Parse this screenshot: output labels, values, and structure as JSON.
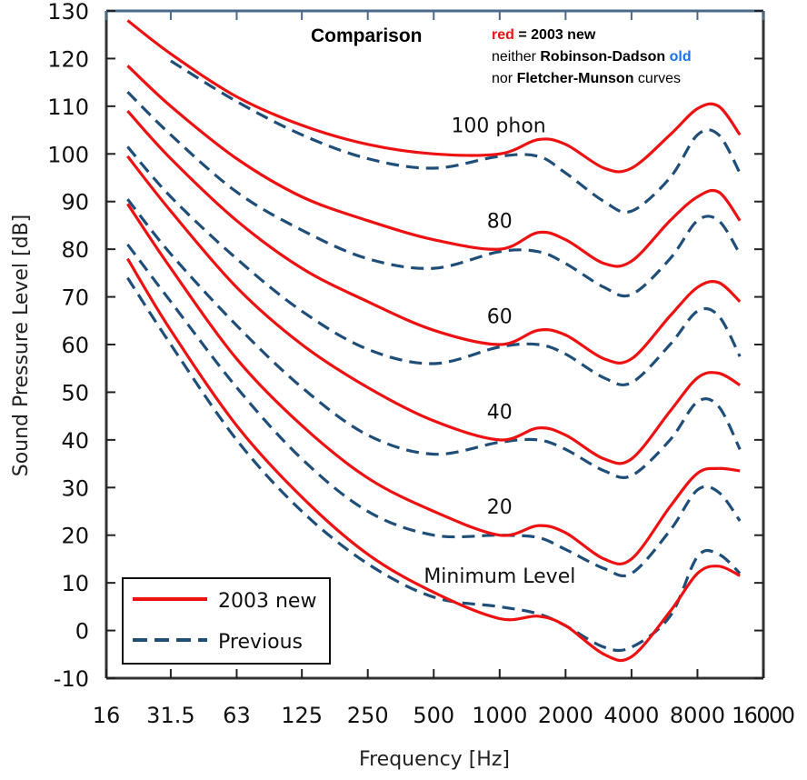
{
  "chart_data": {
    "type": "line",
    "title": "Comparison",
    "notes": {
      "line1": {
        "red_word": "red",
        "rest": " = 2003 new"
      },
      "line2": {
        "pre": "neither ",
        "bold": "Robinson-Dadson",
        "space": " ",
        "old": "old"
      },
      "line3": {
        "pre": "nor ",
        "bold": "Fletcher-Munson",
        "post": " curves"
      }
    },
    "xlabel": "Frequency [Hz]",
    "ylabel": "Sound Pressure Level [dB]",
    "xscale": "log2",
    "xlim": [
      16,
      16000
    ],
    "ylim": [
      -10,
      130
    ],
    "xticks": [
      16,
      31.5,
      63,
      125,
      250,
      500,
      1000,
      2000,
      4000,
      8000,
      16000
    ],
    "xtick_labels": [
      "16",
      "31.5",
      "63",
      "125",
      "250",
      "500",
      "1000",
      "2000",
      "4000",
      "8000",
      "16000"
    ],
    "yticks": [
      -10,
      0,
      10,
      20,
      30,
      40,
      50,
      60,
      70,
      80,
      90,
      100,
      110,
      120,
      130
    ],
    "ytick_labels": [
      "-10",
      "0",
      "10",
      "20",
      "30",
      "40",
      "50",
      "60",
      "70",
      "80",
      "90",
      "100",
      "110",
      "120",
      "130"
    ],
    "grid": false,
    "legend": {
      "position": "bottom-left",
      "entries": [
        {
          "label": "2003 new",
          "style": "solid",
          "color": "#ee1111"
        },
        {
          "label": "Previous",
          "style": "dashed",
          "color": "#1f4e79"
        }
      ]
    },
    "curve_labels": [
      {
        "text": "100 phon",
        "freq": 800,
        "db": 104.5
      },
      {
        "text": "80",
        "freq": 1000,
        "db": 84.5
      },
      {
        "text": "60",
        "freq": 1000,
        "db": 64.5
      },
      {
        "text": "40",
        "freq": 1000,
        "db": 44.5
      },
      {
        "text": "20",
        "freq": 1000,
        "db": 24.5
      },
      {
        "text": "Minimum Level",
        "freq": 600,
        "db": 10
      }
    ],
    "series": [
      {
        "name": "2003 new 100 phon",
        "group": "2003 new",
        "color": "#ee1111",
        "dashed": false,
        "x": [
          20,
          31.5,
          63,
          125,
          250,
          500,
          1000,
          1500,
          2000,
          3000,
          4000,
          6000,
          8000,
          10000,
          12500
        ],
        "y": [
          128,
          121,
          112,
          106,
          102,
          100,
          100,
          103,
          102,
          97,
          97,
          104,
          109.5,
          110,
          104
        ]
      },
      {
        "name": "2003 new 80 phon",
        "group": "2003 new",
        "color": "#ee1111",
        "dashed": false,
        "x": [
          20,
          31.5,
          63,
          125,
          250,
          500,
          1000,
          1500,
          2000,
          3000,
          4000,
          6000,
          8000,
          10000,
          12500
        ],
        "y": [
          118.5,
          110,
          99,
          91,
          86,
          82,
          80,
          83.5,
          82,
          77,
          77.5,
          86,
          91,
          92,
          86
        ]
      },
      {
        "name": "2003 new 60 phon",
        "group": "2003 new",
        "color": "#ee1111",
        "dashed": false,
        "x": [
          20,
          31.5,
          63,
          125,
          250,
          500,
          1000,
          1500,
          2000,
          3000,
          4000,
          6000,
          8000,
          10000,
          12500
        ],
        "y": [
          109,
          99,
          86,
          76,
          69,
          63,
          60,
          63,
          62,
          57,
          57,
          66,
          72,
          73,
          69
        ]
      },
      {
        "name": "2003 new 40 phon",
        "group": "2003 new",
        "color": "#ee1111",
        "dashed": false,
        "x": [
          20,
          31.5,
          63,
          125,
          250,
          500,
          1000,
          1500,
          2000,
          3000,
          4000,
          6000,
          8000,
          10000,
          12500
        ],
        "y": [
          99.5,
          88,
          72,
          60,
          51,
          44,
          40,
          42.5,
          41,
          36,
          36,
          46,
          53,
          54,
          51.5
        ]
      },
      {
        "name": "2003 new 20 phon",
        "group": "2003 new",
        "color": "#ee1111",
        "dashed": false,
        "x": [
          20,
          31.5,
          63,
          125,
          250,
          500,
          1000,
          1500,
          2000,
          3000,
          4000,
          6000,
          8000,
          10000,
          12500
        ],
        "y": [
          89.5,
          76,
          57,
          43,
          32,
          25,
          20,
          22,
          20.5,
          15,
          15,
          26,
          33,
          34,
          33.5
        ]
      },
      {
        "name": "2003 new Minimum Level",
        "group": "2003 new",
        "color": "#ee1111",
        "dashed": false,
        "x": [
          20,
          31.5,
          63,
          125,
          250,
          500,
          1000,
          1500,
          2000,
          3000,
          4000,
          6000,
          8000,
          10000,
          12500
        ],
        "y": [
          78,
          63,
          43,
          28,
          16,
          8,
          2.5,
          3,
          1,
          -5,
          -5.5,
          4,
          12,
          13.5,
          11.5
        ]
      },
      {
        "name": "Previous 100 phon",
        "group": "Previous",
        "color": "#1f4e79",
        "dashed": true,
        "x": [
          31.5,
          63,
          125,
          250,
          500,
          1000,
          1500,
          2000,
          3000,
          4000,
          6000,
          8000,
          10000,
          12500
        ],
        "y": [
          119.5,
          111,
          104,
          99,
          97,
          99.5,
          99.5,
          96,
          90,
          88,
          95,
          104,
          104,
          96
        ]
      },
      {
        "name": "Previous 80 phon",
        "group": "Previous",
        "color": "#1f4e79",
        "dashed": true,
        "x": [
          20,
          31.5,
          63,
          125,
          250,
          500,
          1000,
          1500,
          2000,
          3000,
          4000,
          6000,
          8000,
          10000,
          12500
        ],
        "y": [
          113,
          104,
          92,
          84,
          78,
          76,
          79.5,
          79.5,
          77,
          72,
          70.5,
          78,
          86,
          86,
          79
        ]
      },
      {
        "name": "Previous 60 phon",
        "group": "Previous",
        "color": "#1f4e79",
        "dashed": true,
        "x": [
          20,
          31.5,
          63,
          125,
          250,
          500,
          1000,
          1500,
          2000,
          3000,
          4000,
          6000,
          8000,
          10000,
          12500
        ],
        "y": [
          101.5,
          91,
          78,
          67,
          59,
          56,
          59.5,
          60,
          58,
          53,
          52,
          60,
          67,
          66,
          57.5
        ]
      },
      {
        "name": "Previous 40 phon",
        "group": "Previous",
        "color": "#1f4e79",
        "dashed": true,
        "x": [
          20,
          31.5,
          63,
          125,
          250,
          500,
          1000,
          1500,
          2000,
          3000,
          4000,
          6000,
          8000,
          10000,
          12500
        ],
        "y": [
          90.5,
          79,
          64,
          51,
          41,
          37,
          39.5,
          40,
          38,
          33.5,
          32.5,
          40,
          48,
          47,
          38
        ]
      },
      {
        "name": "Previous 20 phon",
        "group": "Previous",
        "color": "#1f4e79",
        "dashed": true,
        "x": [
          20,
          31.5,
          63,
          125,
          250,
          500,
          1000,
          1500,
          2000,
          3000,
          4000,
          6000,
          8000,
          10000,
          12500
        ],
        "y": [
          81,
          69,
          51,
          36,
          25,
          20,
          20,
          19.5,
          17,
          13,
          12,
          21,
          29.5,
          29,
          23
        ]
      },
      {
        "name": "Previous Minimum Level",
        "group": "Previous",
        "color": "#1f4e79",
        "dashed": true,
        "x": [
          20,
          31.5,
          63,
          125,
          250,
          500,
          1000,
          1500,
          2000,
          3000,
          4000,
          6000,
          8000,
          10000,
          12500
        ],
        "y": [
          74,
          60,
          40,
          25,
          14,
          7,
          5,
          3.5,
          1,
          -3.5,
          -3.5,
          3,
          15.5,
          16,
          12
        ]
      }
    ]
  }
}
